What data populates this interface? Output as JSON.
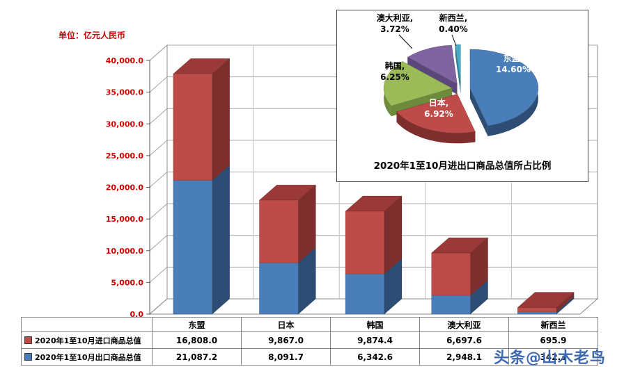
{
  "unit_label": "单位：亿元人民币",
  "watermark": "头条@山木老鸟",
  "watermark_color": "#3E68B0",
  "axis_label_color": "#D00000",
  "chart_data": [
    {
      "type": "bar",
      "variant": "3d-stacked-column",
      "categories": [
        "东盟",
        "日本",
        "韩国",
        "澳大利亚",
        "新西兰"
      ],
      "series": [
        {
          "name": "2020年1至10月出口商品总值",
          "color": "#4A7EBB",
          "side_color": "#2E4D74",
          "top_color": "#3A618F",
          "values": [
            21087.2,
            8091.7,
            6342.6,
            2948.1,
            342.3
          ]
        },
        {
          "name": "2020年1至10月进口商品总值",
          "color": "#BE4B48",
          "side_color": "#7E2E2C",
          "top_color": "#9A3937",
          "values": [
            16808.0,
            9867.0,
            9874.4,
            6697.6,
            695.9
          ]
        }
      ],
      "stacked": true,
      "grid": true,
      "ylim": [
        0,
        40000
      ],
      "ytick_values": [
        0,
        5000,
        10000,
        15000,
        20000,
        25000,
        30000,
        35000,
        40000
      ],
      "ytick_labels": [
        "0.0",
        "5,000.0",
        "10,000.0",
        "15,000.0",
        "20,000.0",
        "25,000.0",
        "30,000.0",
        "35,000.0",
        "40,000.0"
      ]
    },
    {
      "type": "pie",
      "variant": "3d-exploded",
      "title": "2020年1至10月进出口商品总值所占比例",
      "legend_position": "none",
      "labels": [
        "东盟",
        "日本",
        "韩国",
        "澳大利亚",
        "新西兰"
      ],
      "values": [
        14.6,
        6.92,
        6.25,
        3.72,
        0.4
      ],
      "pct_labels": [
        "14.60%",
        "6.92%",
        "6.25%",
        "3.72%",
        "0.40%"
      ],
      "colors": [
        "#4A7EBB",
        "#BE4B48",
        "#9BBB59",
        "#8064A2",
        "#4BACC6"
      ],
      "side_colors": [
        "#2E4D74",
        "#7E2E2C",
        "#6E8A3B",
        "#5C477A",
        "#337E95"
      ],
      "label_colors": [
        "#FFFFFF",
        "#FFFFFF",
        "#000000",
        "#000000",
        "#000000"
      ]
    }
  ],
  "table": {
    "rows": [
      {
        "label": "2020年1至10月进口商品总值",
        "swatch_color": "#BE4B48",
        "values": [
          "16,808.0",
          "9,867.0",
          "9,874.4",
          "6,697.6",
          "695.9"
        ]
      },
      {
        "label": "2020年1至10月出口商品总值",
        "swatch_color": "#4A7EBB",
        "values": [
          "21,087.2",
          "8,091.7",
          "6,342.6",
          "2,948.1",
          "342.3"
        ]
      }
    ]
  }
}
